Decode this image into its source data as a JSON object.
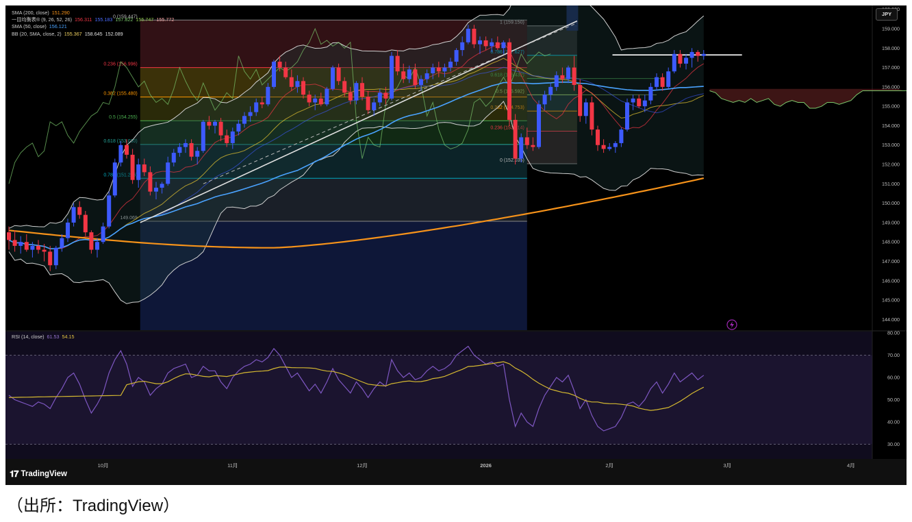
{
  "legend": {
    "sma200": {
      "label": "SMA (200, close)",
      "value": "151.290",
      "color": "#f7931a"
    },
    "ichimoku": {
      "label": "一目均衡表® (9, 26, 52, 26)",
      "v1": "156.311",
      "v2": "155.183",
      "v3": "157.822",
      "v4": "155.747",
      "v5": "155.772"
    },
    "sma50": {
      "label": "SMA (50, close)",
      "value": "156.121",
      "color": "#4aa3ff"
    },
    "bb": {
      "label": "BB (20, SMA, close, 2)",
      "v1": "155.367",
      "v2": "158.645",
      "v3": "152.089"
    }
  },
  "rsi_legend": {
    "label": "RSI (14, close)",
    "v1": "61.53",
    "v2": "54.15"
  },
  "currency_button": "JPY",
  "brand": "TradingView",
  "caption": "（出所：TradingView）",
  "colors": {
    "bull": "#3d5afe",
    "bear": "#f23645",
    "sma200": "#f7931a",
    "sma50": "#4aa3ff",
    "bb": "#d0d0d0",
    "rsi": "#7e57c2",
    "rsi_ma": "#d4b830"
  },
  "chart_data": {
    "type": "candlestick",
    "x_labels": [
      {
        "label": "10月",
        "bar": 16
      },
      {
        "label": "11月",
        "bar": 38
      },
      {
        "label": "12月",
        "bar": 60
      },
      {
        "label": "2026",
        "bar": 81
      },
      {
        "label": "2月",
        "bar": 102
      },
      {
        "label": "3月",
        "bar": 122
      },
      {
        "label": "4月",
        "bar": 143
      }
    ],
    "price_axis": {
      "min": 144,
      "max": 160,
      "ticks": [
        "160.000",
        "159.000",
        "158.000",
        "157.000",
        "156.000",
        "155.000",
        "154.000",
        "153.000",
        "152.000",
        "151.000",
        "150.000",
        "149.000",
        "148.000",
        "147.000",
        "146.000",
        "145.000",
        "144.000"
      ]
    },
    "rsi_axis": {
      "min": 20,
      "max": 80,
      "ticks": [
        "80.00",
        "70.00",
        "60.00",
        "50.00",
        "40.00",
        "30.00"
      ]
    },
    "candles": [
      [
        148.5,
        148.8,
        147.6,
        148.1
      ],
      [
        148.1,
        148.6,
        147.5,
        147.8
      ],
      [
        147.8,
        148.3,
        147.4,
        148.0
      ],
      [
        148.0,
        148.4,
        147.5,
        147.6
      ],
      [
        147.6,
        148.0,
        147.2,
        147.8
      ],
      [
        147.8,
        148.1,
        147.4,
        147.6
      ],
      [
        147.6,
        147.9,
        147.0,
        147.5
      ],
      [
        147.5,
        147.8,
        146.5,
        146.8
      ],
      [
        146.8,
        147.8,
        146.6,
        147.7
      ],
      [
        147.7,
        148.4,
        147.5,
        148.2
      ],
      [
        148.2,
        149.2,
        148.0,
        149.0
      ],
      [
        149.0,
        150.0,
        148.8,
        149.8
      ],
      [
        149.8,
        150.1,
        149.2,
        149.4
      ],
      [
        149.4,
        149.6,
        148.3,
        148.5
      ],
      [
        148.5,
        148.6,
        147.4,
        147.6
      ],
      [
        147.6,
        148.2,
        147.2,
        148.0
      ],
      [
        148.0,
        149.0,
        147.9,
        148.8
      ],
      [
        148.8,
        150.6,
        148.7,
        150.4
      ],
      [
        150.4,
        152.3,
        150.3,
        152.1
      ],
      [
        152.1,
        153.2,
        151.9,
        153.0
      ],
      [
        153.0,
        153.3,
        152.3,
        152.5
      ],
      [
        152.5,
        152.8,
        151.0,
        151.2
      ],
      [
        151.2,
        152.3,
        150.8,
        152.0
      ],
      [
        152.0,
        152.3,
        151.4,
        151.6
      ],
      [
        151.6,
        151.9,
        150.4,
        150.6
      ],
      [
        150.6,
        151.1,
        150.2,
        150.8
      ],
      [
        150.8,
        151.1,
        150.5,
        151.0
      ],
      [
        151.0,
        152.4,
        150.9,
        152.1
      ],
      [
        152.1,
        152.8,
        151.9,
        152.6
      ],
      [
        152.6,
        153.1,
        152.4,
        152.9
      ],
      [
        152.9,
        153.3,
        152.6,
        153.1
      ],
      [
        153.1,
        153.3,
        152.2,
        152.4
      ],
      [
        152.4,
        152.9,
        152.0,
        152.7
      ],
      [
        152.7,
        154.3,
        152.6,
        154.2
      ],
      [
        154.2,
        154.5,
        153.8,
        154.0
      ],
      [
        154.0,
        154.3,
        153.6,
        154.2
      ],
      [
        154.2,
        154.4,
        153.2,
        153.5
      ],
      [
        153.5,
        153.8,
        152.9,
        153.1
      ],
      [
        153.1,
        153.9,
        152.8,
        153.7
      ],
      [
        153.7,
        154.3,
        153.5,
        154.1
      ],
      [
        154.1,
        154.7,
        153.9,
        154.5
      ],
      [
        154.5,
        155.0,
        154.2,
        154.7
      ],
      [
        154.7,
        155.4,
        154.5,
        155.2
      ],
      [
        155.2,
        155.5,
        154.9,
        155.1
      ],
      [
        155.1,
        156.2,
        155.0,
        156.0
      ],
      [
        156.0,
        157.4,
        155.9,
        157.3
      ],
      [
        157.3,
        157.6,
        156.8,
        157.0
      ],
      [
        157.0,
        157.3,
        156.4,
        156.5
      ],
      [
        156.5,
        156.9,
        155.8,
        156.0
      ],
      [
        156.0,
        156.6,
        155.7,
        156.3
      ],
      [
        156.3,
        156.5,
        155.4,
        155.6
      ],
      [
        155.6,
        155.8,
        155.0,
        155.2
      ],
      [
        155.2,
        155.6,
        154.8,
        155.4
      ],
      [
        155.4,
        155.7,
        155.0,
        155.1
      ],
      [
        155.1,
        156.0,
        155.0,
        155.9
      ],
      [
        155.9,
        157.1,
        155.8,
        157.0
      ],
      [
        157.0,
        157.2,
        156.1,
        156.3
      ],
      [
        156.3,
        156.5,
        155.5,
        155.7
      ],
      [
        155.7,
        156.0,
        155.1,
        155.3
      ],
      [
        155.3,
        156.3,
        155.1,
        156.2
      ],
      [
        156.2,
        156.5,
        155.3,
        155.5
      ],
      [
        155.5,
        155.8,
        154.6,
        154.8
      ],
      [
        154.8,
        155.4,
        154.5,
        155.2
      ],
      [
        155.2,
        155.9,
        155.0,
        155.7
      ],
      [
        155.7,
        156.0,
        155.1,
        155.4
      ],
      [
        155.4,
        157.8,
        155.3,
        157.6
      ],
      [
        157.6,
        157.9,
        156.6,
        156.8
      ],
      [
        156.8,
        157.2,
        156.2,
        156.4
      ],
      [
        156.4,
        157.1,
        156.2,
        156.9
      ],
      [
        156.9,
        157.2,
        155.9,
        156.1
      ],
      [
        156.1,
        156.6,
        155.8,
        156.4
      ],
      [
        156.4,
        156.9,
        156.2,
        156.7
      ],
      [
        156.7,
        157.2,
        156.4,
        157.0
      ],
      [
        157.0,
        157.3,
        156.5,
        156.8
      ],
      [
        156.8,
        157.2,
        156.5,
        157.0
      ],
      [
        157.0,
        157.5,
        156.8,
        157.3
      ],
      [
        157.3,
        158.0,
        157.1,
        157.9
      ],
      [
        157.9,
        158.6,
        157.6,
        158.3
      ],
      [
        158.3,
        159.2,
        158.2,
        159.0
      ],
      [
        159.0,
        159.2,
        158.0,
        158.2
      ],
      [
        158.2,
        158.6,
        157.7,
        158.4
      ],
      [
        158.4,
        158.6,
        157.9,
        158.1
      ],
      [
        158.1,
        158.5,
        157.8,
        158.3
      ],
      [
        158.3,
        158.6,
        157.9,
        158.0
      ],
      [
        158.0,
        158.4,
        157.7,
        158.3
      ],
      [
        158.3,
        158.5,
        154.0,
        154.3
      ],
      [
        154.3,
        154.6,
        152.0,
        152.3
      ],
      [
        152.3,
        153.6,
        152.1,
        153.4
      ],
      [
        153.4,
        153.9,
        152.8,
        153.0
      ],
      [
        153.0,
        153.4,
        152.7,
        152.9
      ],
      [
        152.9,
        155.3,
        152.8,
        155.1
      ],
      [
        155.1,
        155.8,
        154.8,
        155.6
      ],
      [
        155.6,
        156.2,
        155.3,
        156.0
      ],
      [
        156.0,
        156.8,
        155.8,
        156.6
      ],
      [
        156.6,
        157.0,
        156.2,
        156.4
      ],
      [
        156.4,
        157.1,
        156.2,
        157.0
      ],
      [
        157.0,
        157.6,
        155.8,
        156.1
      ],
      [
        156.1,
        156.4,
        154.2,
        154.5
      ],
      [
        154.5,
        155.4,
        154.1,
        155.2
      ],
      [
        155.2,
        155.5,
        153.5,
        153.8
      ],
      [
        153.8,
        154.0,
        152.7,
        153.0
      ],
      [
        153.0,
        153.3,
        152.6,
        152.8
      ],
      [
        152.8,
        153.1,
        152.7,
        152.9
      ],
      [
        152.9,
        153.2,
        152.6,
        153.1
      ],
      [
        153.1,
        153.9,
        152.9,
        153.8
      ],
      [
        153.8,
        155.4,
        153.7,
        155.2
      ],
      [
        155.2,
        155.6,
        154.8,
        155.4
      ],
      [
        155.4,
        155.6,
        154.9,
        155.0
      ],
      [
        155.0,
        155.6,
        154.7,
        155.3
      ],
      [
        155.3,
        156.2,
        155.1,
        156.0
      ],
      [
        156.0,
        156.7,
        155.8,
        156.5
      ],
      [
        156.5,
        156.7,
        155.8,
        156.0
      ],
      [
        156.0,
        157.0,
        155.9,
        156.8
      ],
      [
        156.8,
        157.9,
        156.7,
        157.7
      ],
      [
        157.7,
        157.9,
        157.0,
        157.2
      ],
      [
        157.2,
        157.7,
        156.9,
        157.5
      ],
      [
        157.5,
        158.0,
        157.0,
        157.8
      ],
      [
        157.8,
        157.9,
        157.3,
        157.6
      ],
      [
        157.6,
        157.9,
        157.4,
        157.7
      ]
    ],
    "sma200_end": 151.29,
    "sma50_end": 156.121,
    "bb_end": {
      "middle": 155.367,
      "upper": 158.645,
      "lower": 152.089
    },
    "fib_left": {
      "levels": [
        {
          "ratio": "1",
          "price": 159.15,
          "label": "1 (159.150)"
        },
        {
          "ratio": "0.786",
          "price": 157.627,
          "label": "0.786 (157.627)"
        },
        {
          "ratio": "0.618",
          "price": 156.432,
          "label": "0.618 (156.432)"
        },
        {
          "ratio": "0.5",
          "price": 155.592,
          "label": "0.5 (155.592)"
        },
        {
          "ratio": "0.382",
          "price": 154.753,
          "label": "0.382 (154.753)"
        },
        {
          "ratio": "0.236",
          "price": 153.714,
          "label": "0.236 (153.714)"
        },
        {
          "ratio": "0",
          "price": 152.035,
          "label": "0 (152.035)"
        }
      ]
    },
    "fib_right": {
      "levels": [
        {
          "ratio": "0",
          "price": 159.447,
          "label": "0 (159.447)"
        },
        {
          "ratio": "0.236",
          "price": 156.996,
          "label": "0.236 (156.996)"
        },
        {
          "ratio": "0.382",
          "price": 155.48,
          "label": "0.382 (155.480)"
        },
        {
          "ratio": "0.5",
          "price": 154.255,
          "label": "0.5 (154.255)"
        },
        {
          "ratio": "0.618",
          "price": 153.03,
          "label": "0.618 (153.030)"
        },
        {
          "ratio": "0.786",
          "price": 151.286,
          "label": "0.786 (151.286)"
        },
        {
          "ratio": "1",
          "price": 149.069,
          "label": "149.069"
        }
      ]
    },
    "rsi": [
      52,
      50,
      49,
      48,
      47,
      49,
      48,
      46,
      51,
      55,
      60,
      62,
      57,
      50,
      44,
      48,
      53,
      62,
      68,
      72,
      66,
      56,
      60,
      58,
      52,
      55,
      57,
      62,
      64,
      65,
      66,
      60,
      61,
      65,
      63,
      63,
      58,
      55,
      60,
      63,
      65,
      66,
      68,
      67,
      69,
      73,
      70,
      65,
      60,
      62,
      58,
      54,
      57,
      53,
      58,
      64,
      59,
      56,
      53,
      58,
      55,
      51,
      55,
      58,
      56,
      68,
      63,
      60,
      62,
      59,
      60,
      63,
      65,
      63,
      64,
      66,
      70,
      72,
      74,
      70,
      68,
      66,
      67,
      65,
      66,
      50,
      38,
      44,
      40,
      38,
      46,
      52,
      56,
      60,
      58,
      61,
      54,
      46,
      50,
      43,
      38,
      36,
      37,
      38,
      42,
      48,
      49,
      47,
      50,
      55,
      58,
      53,
      57,
      62,
      58,
      60,
      62,
      59,
      61
    ],
    "rsi_ma_end": 54.15,
    "rsi_end": 61.53
  }
}
